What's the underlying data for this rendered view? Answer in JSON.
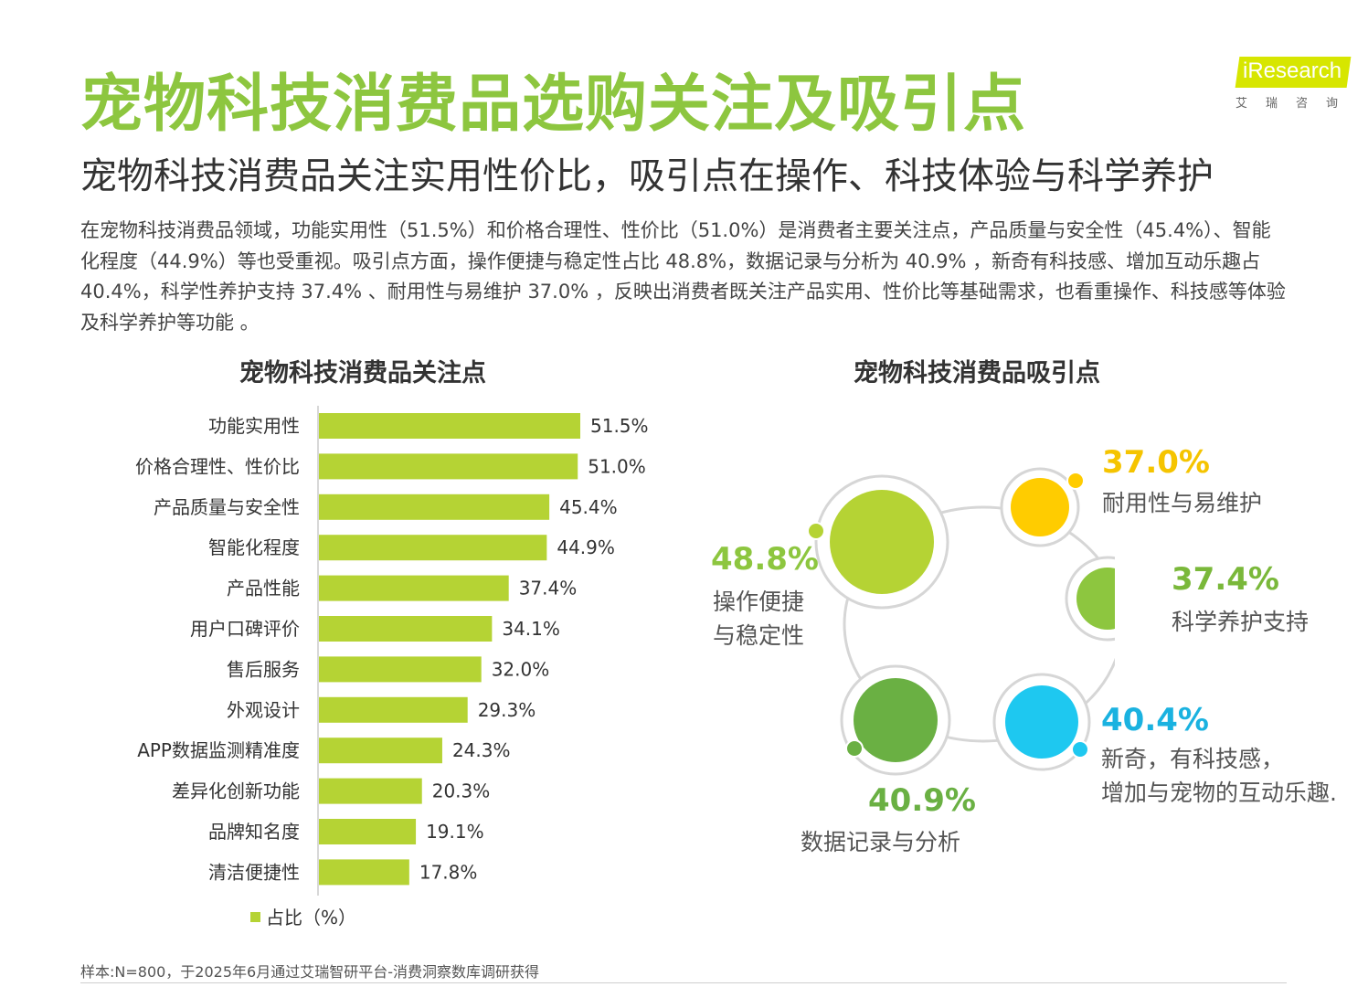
{
  "header": {
    "title": "宠物科技消费品选购关注及吸引点",
    "subtitle": "宠物科技消费品关注实用性价比，吸引点在操作、科技体验与科学养护",
    "summary": "在宠物科技消费品领域，功能实用性（51.5%）和价格合理性、性价比（51.0%）是消费者主要关注点，产品质量与安全性（45.4%）、智能化程度（44.9%）等也受重视。吸引点方面，操作便捷与稳定性占比 48.8%，数据记录与分析为 40.9% ，新奇有科技感、增加互动乐趣占 40.4%，科学性养护支持 37.4% 、耐用性与易维护 37.0% ，反映出消费者既关注产品实用、性价比等基础需求，也看重操作、科技感等体验及科学养护等功能 。"
  },
  "logo": {
    "text": "iResearch",
    "cn": "艾瑞咨询"
  },
  "chart_data": [
    {
      "type": "bar",
      "orientation": "horizontal",
      "title": "宠物科技消费品关注点",
      "categories": [
        "功能实用性",
        "价格合理性、性价比",
        "产品质量与安全性",
        "智能化程度",
        "产品性能",
        "用户口碑评价",
        "售后服务",
        "外观设计",
        "APP数据监测精准度",
        "差异化创新功能",
        "品牌知名度",
        "清洁便捷性"
      ],
      "series": [
        {
          "name": "占比（%）",
          "values": [
            51.5,
            51.0,
            45.4,
            44.9,
            37.4,
            34.1,
            32.0,
            29.3,
            24.3,
            20.3,
            19.1,
            17.8
          ]
        }
      ],
      "value_suffix": "%",
      "xlim": [
        0,
        60
      ],
      "legend_position": "bottom-left",
      "grid": false,
      "bar_color": "#b5d334"
    },
    {
      "type": "bubble",
      "title": "宠物科技消费品吸引点",
      "items": [
        {
          "label": "操作便捷与稳定性",
          "label_lines": [
            "操作便捷",
            "与稳定性"
          ],
          "value": 48.8,
          "pct": "48.8%",
          "color": "#b5d334",
          "pct_color": "#8dc63f"
        },
        {
          "label": "耐用性与易维护",
          "label_lines": [
            "耐用性与易维护"
          ],
          "value": 37.0,
          "pct": "37.0%",
          "color": "#ffcc00",
          "pct_color": "#f5c400"
        },
        {
          "label": "科学养护支持",
          "label_lines": [
            "科学养护支持"
          ],
          "value": 37.4,
          "pct": "37.4%",
          "color": "#8dc63f",
          "pct_color": "#7ab83a"
        },
        {
          "label": "新奇，有科技感，增加与宠物的互动乐趣.",
          "label_lines": [
            "新奇，有科技感，",
            "增加与宠物的互动乐趣."
          ],
          "value": 40.4,
          "pct": "40.4%",
          "color": "#1ec8f0",
          "pct_color": "#1ab2e0"
        },
        {
          "label": "数据记录与分析",
          "label_lines": [
            "数据记录与分析"
          ],
          "value": 40.9,
          "pct": "40.9%",
          "color": "#6ab043",
          "pct_color": "#6ab043"
        }
      ]
    }
  ],
  "footnote": "样本:N=800，于2025年6月通过艾瑞智研平台-消费洞察数库调研获得"
}
